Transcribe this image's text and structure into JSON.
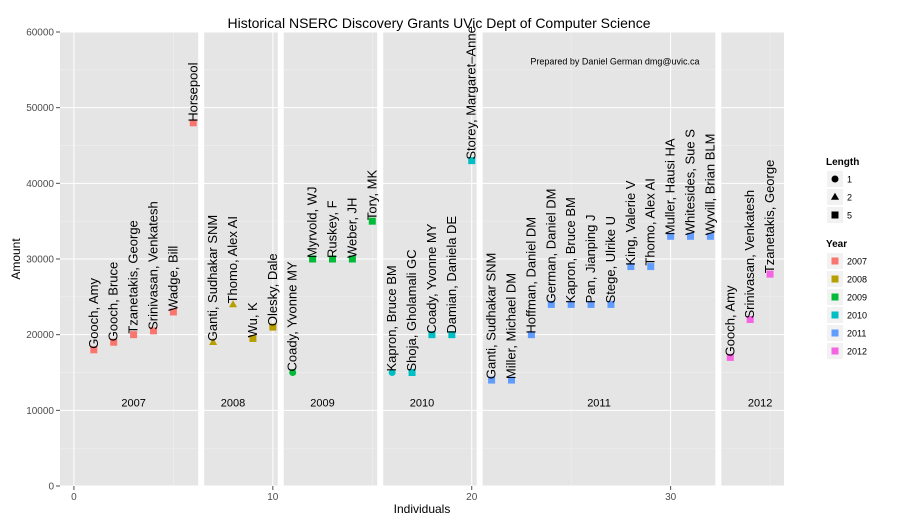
{
  "chart_data": {
    "type": "scatter",
    "title": "Historical NSERC Discovery Grants UVic Dept of Computer Science",
    "subtitle": "Prepared by Daniel German dmg@uvic.ca",
    "xlabel": "Individuals",
    "ylabel": "Amount",
    "xlim": [
      -0.7,
      35.7
    ],
    "ylim": [
      0,
      60000
    ],
    "x_ticks": [
      0,
      10,
      20,
      30
    ],
    "y_ticks": [
      0,
      10000,
      20000,
      30000,
      40000,
      50000,
      60000
    ],
    "x_tick_labels": [
      "0",
      "10",
      "20",
      "30"
    ],
    "y_tick_labels": [
      "0",
      "10000",
      "20000",
      "30000",
      "40000",
      "50000",
      "60000"
    ],
    "year_separators": [
      6.4,
      10.4,
      15.4,
      20.4,
      32.4
    ],
    "year_labels": [
      {
        "text": "2007",
        "x": 3,
        "y": 10500
      },
      {
        "text": "2008",
        "x": 8,
        "y": 10500
      },
      {
        "text": "2009",
        "x": 12.5,
        "y": 10500
      },
      {
        "text": "2010",
        "x": 17.5,
        "y": 10500
      },
      {
        "text": "2011",
        "x": 26.4,
        "y": 10500
      },
      {
        "text": "2012",
        "x": 34.5,
        "y": 10500
      }
    ],
    "year_colors": {
      "2007": "#F8766D",
      "2008": "#B79F00",
      "2009": "#00BA38",
      "2010": "#00BFC4",
      "2011": "#619CFF",
      "2012": "#F564E3"
    },
    "legend": {
      "position": "right",
      "length_title": "Length",
      "length_items": [
        {
          "label": "1",
          "shape": "circle"
        },
        {
          "label": "2",
          "shape": "triangle"
        },
        {
          "label": "5",
          "shape": "square"
        }
      ],
      "year_title": "Year",
      "year_items": [
        "2007",
        "2008",
        "2009",
        "2010",
        "2011",
        "2012"
      ]
    },
    "points": [
      {
        "x": 1,
        "y": 18000,
        "name": "Gooch, Amy",
        "year": "2007",
        "length": 5
      },
      {
        "x": 2,
        "y": 19000,
        "name": "Gooch, Bruce",
        "year": "2007",
        "length": 5
      },
      {
        "x": 3,
        "y": 20000,
        "name": "Tzanetakis, George",
        "year": "2007",
        "length": 5
      },
      {
        "x": 4,
        "y": 20500,
        "name": "Srinivasan, Venkatesh",
        "year": "2007",
        "length": 5
      },
      {
        "x": 5,
        "y": 23000,
        "name": "Wadge, Bill",
        "year": "2007",
        "length": 5
      },
      {
        "x": 6,
        "y": 48000,
        "name": "Horsepool",
        "year": "2007",
        "length": 5
      },
      {
        "x": 7,
        "y": 19000,
        "name": "Ganti, Sudhakar SNM",
        "year": "2008",
        "length": 2
      },
      {
        "x": 8,
        "y": 24000,
        "name": "Thomo, Alex AI",
        "year": "2008",
        "length": 2
      },
      {
        "x": 9,
        "y": 19500,
        "name": "Wu, K",
        "year": "2008",
        "length": 5
      },
      {
        "x": 10,
        "y": 21000,
        "name": "Olesky, Dale",
        "year": "2008",
        "length": 5
      },
      {
        "x": 11,
        "y": 15000,
        "name": "Coady, Yvonne MY",
        "year": "2009",
        "length": 1
      },
      {
        "x": 12,
        "y": 30000,
        "name": "Myrvold, WJ",
        "year": "2009",
        "length": 5
      },
      {
        "x": 13,
        "y": 30000,
        "name": "Ruskey, F",
        "year": "2009",
        "length": 5
      },
      {
        "x": 14,
        "y": 30000,
        "name": "Weber, JH",
        "year": "2009",
        "length": 5
      },
      {
        "x": 15,
        "y": 35000,
        "name": "Tory, MK",
        "year": "2009",
        "length": 5
      },
      {
        "x": 16,
        "y": 15000,
        "name": "Kapron, Bruce BM",
        "year": "2010",
        "length": 1
      },
      {
        "x": 17,
        "y": 15000,
        "name": "Shoja, Gholamali GC",
        "year": "2010",
        "length": 5
      },
      {
        "x": 18,
        "y": 20000,
        "name": "Coady, Yvonne MY",
        "year": "2010",
        "length": 5
      },
      {
        "x": 19,
        "y": 20000,
        "name": "Damian, Daniela DE",
        "year": "2010",
        "length": 5
      },
      {
        "x": 20,
        "y": 43000,
        "name": "Storey, Margaret–Anne",
        "year": "2010",
        "length": 5
      },
      {
        "x": 21,
        "y": 14000,
        "name": "Ganti, Sudhakar SNM",
        "year": "2011",
        "length": 5
      },
      {
        "x": 22,
        "y": 14000,
        "name": "Miller, Michael DM",
        "year": "2011",
        "length": 5
      },
      {
        "x": 23,
        "y": 20000,
        "name": "Hoffman, Daniel DM",
        "year": "2011",
        "length": 5
      },
      {
        "x": 24,
        "y": 24000,
        "name": "German, Daniel DM",
        "year": "2011",
        "length": 5
      },
      {
        "x": 25,
        "y": 24000,
        "name": "Kapron, Bruce BM",
        "year": "2011",
        "length": 5
      },
      {
        "x": 26,
        "y": 24000,
        "name": "Pan, Jianping J",
        "year": "2011",
        "length": 5
      },
      {
        "x": 27,
        "y": 24000,
        "name": "Stege, Ulrike U",
        "year": "2011",
        "length": 5
      },
      {
        "x": 28,
        "y": 29000,
        "name": "King, Valerie V",
        "year": "2011",
        "length": 5
      },
      {
        "x": 29,
        "y": 29000,
        "name": "Thomo, Alex AI",
        "year": "2011",
        "length": 5
      },
      {
        "x": 30,
        "y": 33000,
        "name": "Muller, Hausi HA",
        "year": "2011",
        "length": 5
      },
      {
        "x": 31,
        "y": 33000,
        "name": "Whitesides, Sue S",
        "year": "2011",
        "length": 5
      },
      {
        "x": 32,
        "y": 33000,
        "name": "Wyvill, Brian BLM",
        "year": "2011",
        "length": 5
      },
      {
        "x": 33,
        "y": 17000,
        "name": "Gooch, Amy",
        "year": "2012",
        "length": 5
      },
      {
        "x": 34,
        "y": 22000,
        "name": "Srinivasan, Venkatesh",
        "year": "2012",
        "length": 5
      },
      {
        "x": 35,
        "y": 28000,
        "name": "Tzanetakis, George",
        "year": "2012",
        "length": 5
      }
    ]
  }
}
